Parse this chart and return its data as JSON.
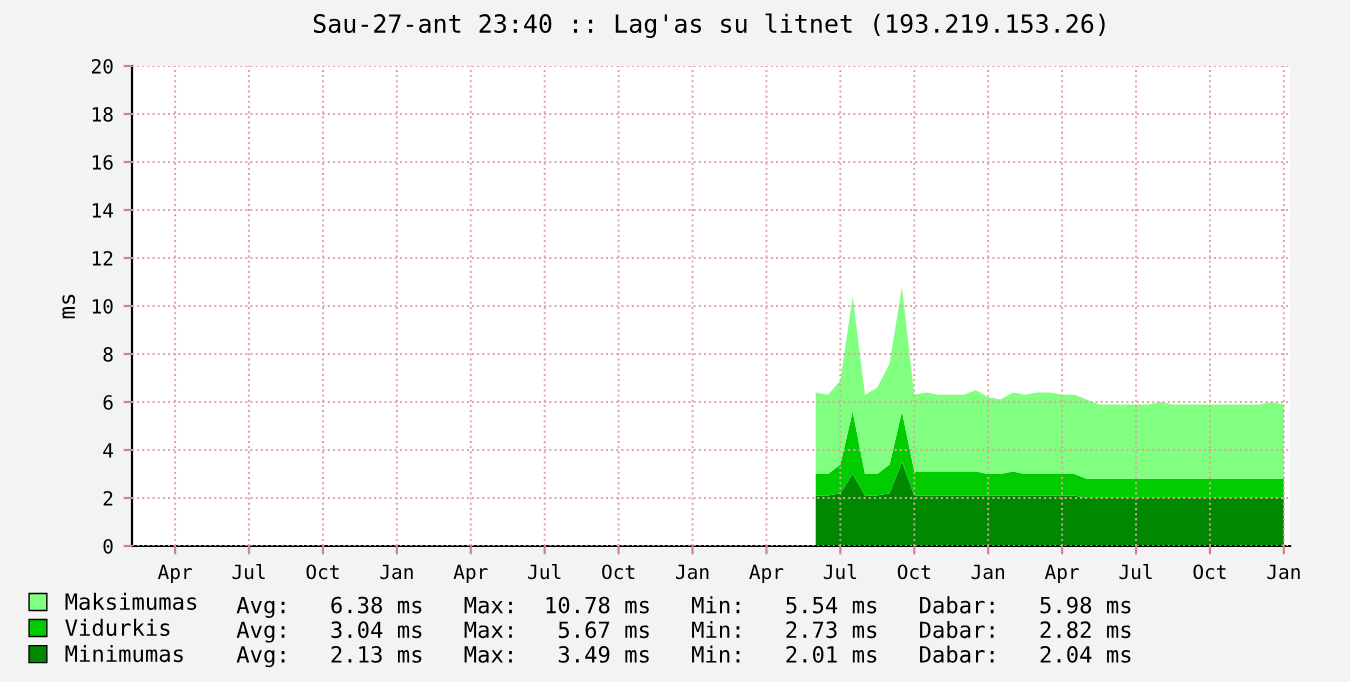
{
  "chart_data": {
    "type": "area",
    "stacked": true,
    "title": "Sau-27-ant 23:40 :: Lag'as su litnet (193.219.153.26)",
    "ylabel": "ms",
    "categories": [
      null,
      null,
      null,
      "Apr",
      null,
      null,
      null,
      null,
      null,
      "Jul",
      null,
      null,
      null,
      null,
      null,
      "Oct",
      null,
      null,
      null,
      null,
      null,
      "Jan",
      null,
      null,
      null,
      null,
      null,
      "Apr",
      null,
      null,
      null,
      null,
      null,
      "Jul",
      null,
      null,
      null,
      null,
      null,
      "Oct",
      null,
      null,
      null,
      null,
      null,
      "Jan",
      null,
      null,
      null,
      null,
      null,
      "Apr",
      null,
      null,
      null,
      null,
      null,
      "Jul",
      null,
      null,
      null,
      null,
      null,
      "Oct",
      null,
      null,
      null,
      null,
      null,
      "Jan",
      null,
      null,
      null,
      null,
      null,
      "Apr",
      null,
      null,
      null,
      null,
      null,
      "Jul",
      null,
      null,
      null,
      null,
      null,
      "Oct",
      null,
      null,
      null,
      null,
      null,
      "Jan"
    ],
    "series": [
      {
        "name": "Minimumas",
        "color": "#008800",
        "values": [
          null,
          null,
          null,
          null,
          null,
          null,
          null,
          null,
          null,
          null,
          null,
          null,
          null,
          null,
          null,
          null,
          null,
          null,
          null,
          null,
          null,
          null,
          null,
          null,
          null,
          null,
          null,
          null,
          null,
          null,
          null,
          null,
          null,
          null,
          null,
          null,
          null,
          null,
          null,
          null,
          null,
          null,
          null,
          null,
          null,
          null,
          null,
          null,
          null,
          null,
          null,
          null,
          null,
          null,
          null,
          2.1,
          2.1,
          2.2,
          3.0,
          2.1,
          2.1,
          2.2,
          3.5,
          2.1,
          2.1,
          2.1,
          2.1,
          2.1,
          2.1,
          2.1,
          2.1,
          2.1,
          2.1,
          2.1,
          2.1,
          2.1,
          2.1,
          2.0,
          2.0,
          2.0,
          2.0,
          2.0,
          2.0,
          2.0,
          2.0,
          2.0,
          2.0,
          2.0,
          2.0,
          2.0,
          2.0,
          2.0,
          2.0,
          2.0
        ]
      },
      {
        "name": "Vidurkis",
        "color": "#00cc00",
        "values": [
          null,
          null,
          null,
          null,
          null,
          null,
          null,
          null,
          null,
          null,
          null,
          null,
          null,
          null,
          null,
          null,
          null,
          null,
          null,
          null,
          null,
          null,
          null,
          null,
          null,
          null,
          null,
          null,
          null,
          null,
          null,
          null,
          null,
          null,
          null,
          null,
          null,
          null,
          null,
          null,
          null,
          null,
          null,
          null,
          null,
          null,
          null,
          null,
          null,
          null,
          null,
          null,
          null,
          null,
          null,
          0.9,
          0.9,
          1.2,
          2.6,
          0.9,
          0.9,
          1.2,
          2.1,
          1.0,
          1.0,
          1.0,
          1.0,
          1.0,
          1.0,
          0.9,
          0.9,
          1.0,
          0.9,
          0.9,
          0.9,
          0.9,
          0.9,
          0.8,
          0.8,
          0.8,
          0.8,
          0.8,
          0.8,
          0.8,
          0.8,
          0.8,
          0.8,
          0.8,
          0.8,
          0.8,
          0.8,
          0.8,
          0.8,
          0.8
        ]
      },
      {
        "name": "Maksimumas",
        "color": "#80ff80",
        "values": [
          null,
          null,
          null,
          null,
          null,
          null,
          null,
          null,
          null,
          null,
          null,
          null,
          null,
          null,
          null,
          null,
          null,
          null,
          null,
          null,
          null,
          null,
          null,
          null,
          null,
          null,
          null,
          null,
          null,
          null,
          null,
          null,
          null,
          null,
          null,
          null,
          null,
          null,
          null,
          null,
          null,
          null,
          null,
          null,
          null,
          null,
          null,
          null,
          null,
          null,
          null,
          null,
          null,
          null,
          null,
          3.4,
          3.3,
          3.5,
          4.8,
          3.3,
          3.6,
          4.2,
          5.2,
          3.2,
          3.3,
          3.2,
          3.2,
          3.2,
          3.4,
          3.2,
          3.1,
          3.3,
          3.3,
          3.4,
          3.4,
          3.3,
          3.3,
          3.3,
          3.1,
          3.1,
          3.1,
          3.1,
          3.1,
          3.2,
          3.1,
          3.1,
          3.1,
          3.1,
          3.1,
          3.1,
          3.1,
          3.1,
          3.2,
          3.1
        ]
      }
    ],
    "ylim": [
      0,
      20
    ],
    "yticks": [
      0,
      2,
      4,
      6,
      8,
      10,
      12,
      14,
      16,
      18,
      20
    ],
    "grid": true,
    "legend": "bottom left",
    "annotations": [
      "Avg:   6.38 ms   Max:  10.78 ms   Min:   5.54 ms   Dabar:   5.98 ms",
      "Avg:   3.04 ms   Max:   5.67 ms   Min:   2.73 ms   Dabar:   2.82 ms",
      "Avg:   2.13 ms   Max:   3.49 ms   Min:   2.01 ms   Dabar:   2.04 ms"
    ]
  }
}
